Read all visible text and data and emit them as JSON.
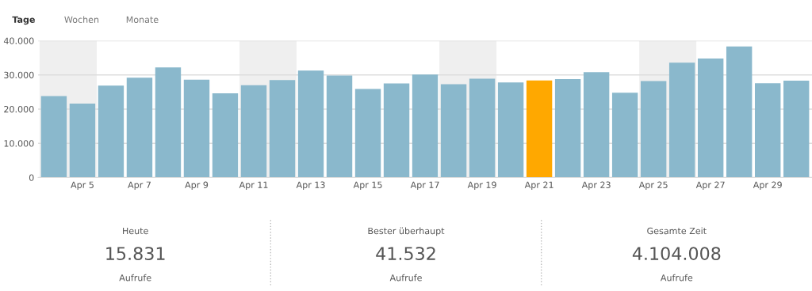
{
  "chart_data": [
    {
      "type": "bar",
      "categories": [
        null,
        "Apr 5",
        null,
        "Apr 7",
        null,
        "Apr 9",
        null,
        "Apr 11",
        null,
        "Apr 13",
        null,
        "Apr 15",
        null,
        "Apr 17",
        null,
        "Apr 19",
        null,
        "Apr 21",
        null,
        "Apr 23",
        null,
        "Apr 25",
        null,
        "Apr 27",
        null,
        "Apr 29",
        null
      ],
      "values": [
        23800,
        21600,
        26900,
        29200,
        32200,
        28600,
        24600,
        27000,
        28500,
        31300,
        29800,
        25900,
        27500,
        30100,
        27300,
        28900,
        27800,
        28400,
        28800,
        30800,
        24800,
        28200,
        33600,
        34800,
        38300,
        27600,
        28300
      ],
      "colors": [
        "#8ab8cc",
        "#8ab8cc",
        "#8ab8cc",
        "#8ab8cc",
        "#8ab8cc",
        "#8ab8cc",
        "#8ab8cc",
        "#8ab8cc",
        "#8ab8cc",
        "#8ab8cc",
        "#8ab8cc",
        "#8ab8cc",
        "#8ab8cc",
        "#8ab8cc",
        "#8ab8cc",
        "#8ab8cc",
        "#8ab8cc",
        "#ffa800",
        "#8ab8cc",
        "#8ab8cc",
        "#8ab8cc",
        "#8ab8cc",
        "#8ab8cc",
        "#8ab8cc",
        "#8ab8cc",
        "#8ab8cc",
        "#8ab8cc"
      ],
      "ylim": [
        0,
        40000
      ],
      "yticks": [
        {
          "value": 0,
          "label": "0"
        },
        {
          "value": 10000,
          "label": "10.000"
        },
        {
          "value": 20000,
          "label": "20.000"
        },
        {
          "value": 30000,
          "label": "30.000"
        },
        {
          "value": 40000,
          "label": "40.000"
        }
      ],
      "grid": "y",
      "annotations": [
        "Tage",
        "Wochen",
        "Monate"
      ]
    },
    {
      "type": "other",
      "annotations": [
        "Heute",
        "15.831",
        "Aufrufe",
        "Bester überhaupt",
        "41.532",
        "Aufrufe",
        "Gesamte Zeit",
        "4.104.008",
        "Aufrufe"
      ]
    }
  ]
}
